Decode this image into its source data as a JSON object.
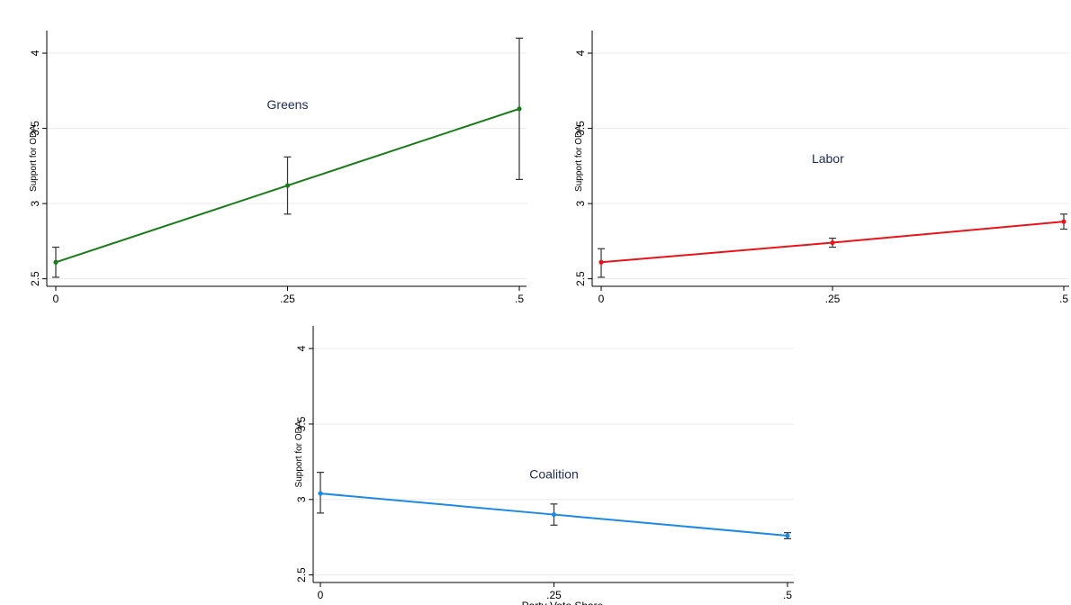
{
  "chart_data": [
    {
      "type": "line",
      "panel_label": "Greens",
      "ylabel": "Support for ODA",
      "xlabel": "",
      "x": [
        0,
        0.25,
        0.5
      ],
      "x_tick_labels": [
        "0",
        ".25",
        ".5"
      ],
      "y_ticks": [
        2.5,
        3,
        3.5,
        4
      ],
      "y_tick_labels": [
        "2.5",
        "3",
        "3.5",
        "4"
      ],
      "ylim": [
        2.45,
        4.15
      ],
      "xlim": [
        -0.01,
        0.505
      ],
      "grid": true,
      "series": [
        {
          "values": [
            2.61,
            3.12,
            3.63
          ],
          "ci_low": [
            2.51,
            2.93,
            3.16
          ],
          "ci_high": [
            2.71,
            3.31,
            4.1
          ],
          "color": "#1a7a1a"
        }
      ]
    },
    {
      "type": "line",
      "panel_label": "Labor",
      "ylabel": "Support for ODA",
      "xlabel": "",
      "x": [
        0,
        0.25,
        0.5
      ],
      "x_tick_labels": [
        "0",
        ".25",
        ".5"
      ],
      "y_ticks": [
        2.5,
        3,
        3.5,
        4
      ],
      "y_tick_labels": [
        "2.5",
        "3",
        "3.5",
        "4"
      ],
      "ylim": [
        2.45,
        4.15
      ],
      "xlim": [
        -0.01,
        0.505
      ],
      "grid": true,
      "series": [
        {
          "values": [
            2.61,
            2.74,
            2.88
          ],
          "ci_low": [
            2.51,
            2.71,
            2.83
          ],
          "ci_high": [
            2.7,
            2.77,
            2.93
          ],
          "color": "#e8141c"
        }
      ]
    },
    {
      "type": "line",
      "panel_label": "Coalition",
      "ylabel": "Support for ODA",
      "xlabel": "Party Vote Share",
      "x": [
        0,
        0.25,
        0.5
      ],
      "x_tick_labels": [
        "0",
        ".25",
        ".5"
      ],
      "y_ticks": [
        2.5,
        3,
        3.5,
        4
      ],
      "y_tick_labels": [
        "2.5",
        "3",
        "3.5",
        "4"
      ],
      "ylim": [
        2.45,
        4.15
      ],
      "xlim": [
        -0.01,
        0.505
      ],
      "grid": true,
      "series": [
        {
          "values": [
            3.04,
            2.9,
            2.76
          ],
          "ci_low": [
            2.91,
            2.83,
            2.74
          ],
          "ci_high": [
            3.18,
            2.97,
            2.78
          ],
          "color": "#1e88e5"
        }
      ]
    }
  ]
}
